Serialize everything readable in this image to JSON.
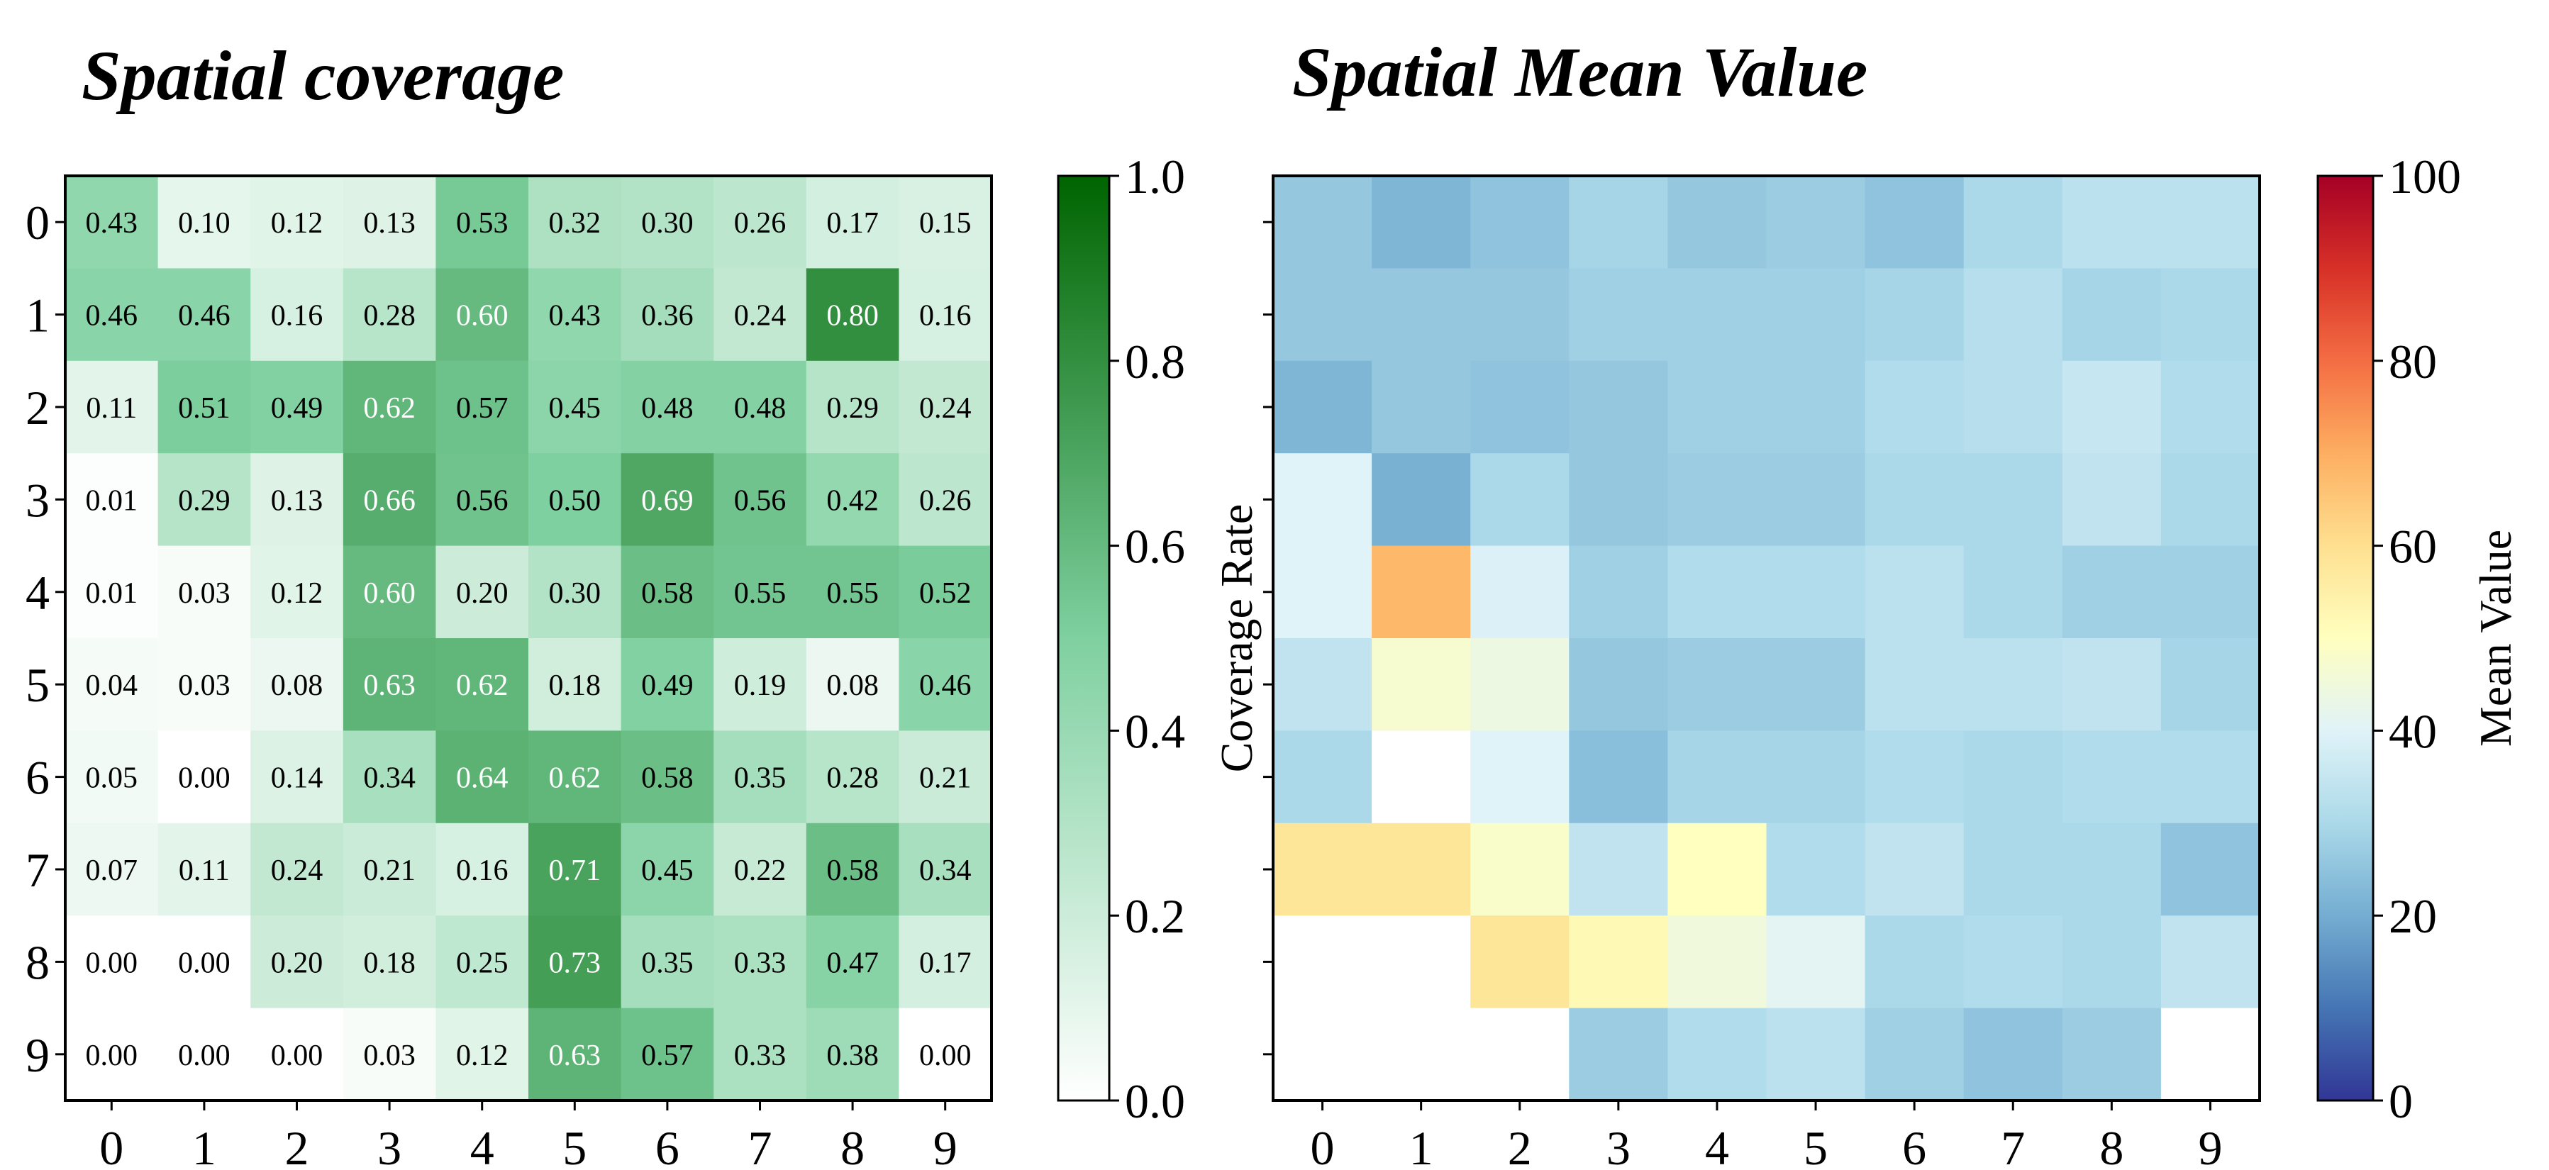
{
  "chart_data": [
    {
      "type": "heatmap",
      "title": "Spatial coverage",
      "x_tick_labels": [
        "0",
        "1",
        "2",
        "3",
        "4",
        "5",
        "6",
        "7",
        "8",
        "9"
      ],
      "y_tick_labels": [
        "0",
        "1",
        "2",
        "3",
        "4",
        "5",
        "6",
        "7",
        "8",
        "9"
      ],
      "colormap": "white-to-green",
      "colorbar": {
        "label": "Coverage Rate",
        "range": [
          0,
          1
        ],
        "tick_labels": [
          "0.0",
          "0.2",
          "0.4",
          "0.6",
          "0.8",
          "1.0"
        ],
        "colors": [
          "#ffffff",
          "#7fd0a0",
          "#006400"
        ]
      },
      "annotated": true,
      "values": [
        [
          0.43,
          0.1,
          0.12,
          0.13,
          0.53,
          0.32,
          0.3,
          0.26,
          0.17,
          0.15
        ],
        [
          0.46,
          0.46,
          0.16,
          0.28,
          0.6,
          0.43,
          0.36,
          0.24,
          0.8,
          0.16
        ],
        [
          0.11,
          0.51,
          0.49,
          0.62,
          0.57,
          0.45,
          0.48,
          0.48,
          0.29,
          0.24
        ],
        [
          0.01,
          0.29,
          0.13,
          0.66,
          0.56,
          0.5,
          0.69,
          0.56,
          0.42,
          0.26
        ],
        [
          0.01,
          0.03,
          0.12,
          0.6,
          0.2,
          0.3,
          0.58,
          0.55,
          0.55,
          0.52
        ],
        [
          0.04,
          0.03,
          0.08,
          0.63,
          0.62,
          0.18,
          0.49,
          0.19,
          0.08,
          0.46
        ],
        [
          0.05,
          0.0,
          0.14,
          0.34,
          0.64,
          0.62,
          0.58,
          0.35,
          0.28,
          0.21
        ],
        [
          0.07,
          0.11,
          0.24,
          0.21,
          0.16,
          0.71,
          0.45,
          0.22,
          0.58,
          0.34
        ],
        [
          0.0,
          0.0,
          0.2,
          0.18,
          0.25,
          0.73,
          0.35,
          0.33,
          0.47,
          0.17
        ],
        [
          0.0,
          0.0,
          0.0,
          0.03,
          0.12,
          0.63,
          0.57,
          0.33,
          0.38,
          0.0
        ]
      ]
    },
    {
      "type": "heatmap",
      "title": "Spatial Mean Value",
      "x_tick_labels": [
        "0",
        "1",
        "2",
        "3",
        "4",
        "5",
        "6",
        "7",
        "8",
        "9"
      ],
      "y_tick_labels": [],
      "colormap": "RdYlBu_r",
      "colorbar": {
        "label": "Mean Value",
        "range": [
          0,
          100
        ],
        "tick_labels": [
          "0",
          "20",
          "40",
          "60",
          "80",
          "100"
        ]
      },
      "annotated": false,
      "values": [
        [
          26,
          22,
          25,
          29,
          26,
          27,
          25,
          30,
          33,
          33
        ],
        [
          26,
          26,
          26,
          28,
          28,
          28,
          29,
          32,
          29,
          30
        ],
        [
          22,
          26,
          25,
          26,
          28,
          28,
          31,
          32,
          35,
          31
        ],
        [
          40,
          21,
          30,
          26,
          27,
          27,
          30,
          30,
          34,
          30
        ],
        [
          40,
          68,
          39,
          28,
          31,
          31,
          33,
          30,
          28,
          28
        ],
        [
          34,
          47,
          44,
          26,
          27,
          27,
          33,
          33,
          34,
          29
        ],
        [
          30,
          null,
          40,
          24,
          29,
          29,
          31,
          30,
          31,
          31
        ],
        [
          58,
          58,
          48,
          34,
          50,
          31,
          34,
          30,
          30,
          25
        ],
        [
          null,
          null,
          58,
          52,
          45,
          41,
          30,
          31,
          30,
          34
        ],
        [
          null,
          null,
          null,
          27,
          31,
          33,
          28,
          25,
          27,
          null
        ]
      ]
    }
  ]
}
